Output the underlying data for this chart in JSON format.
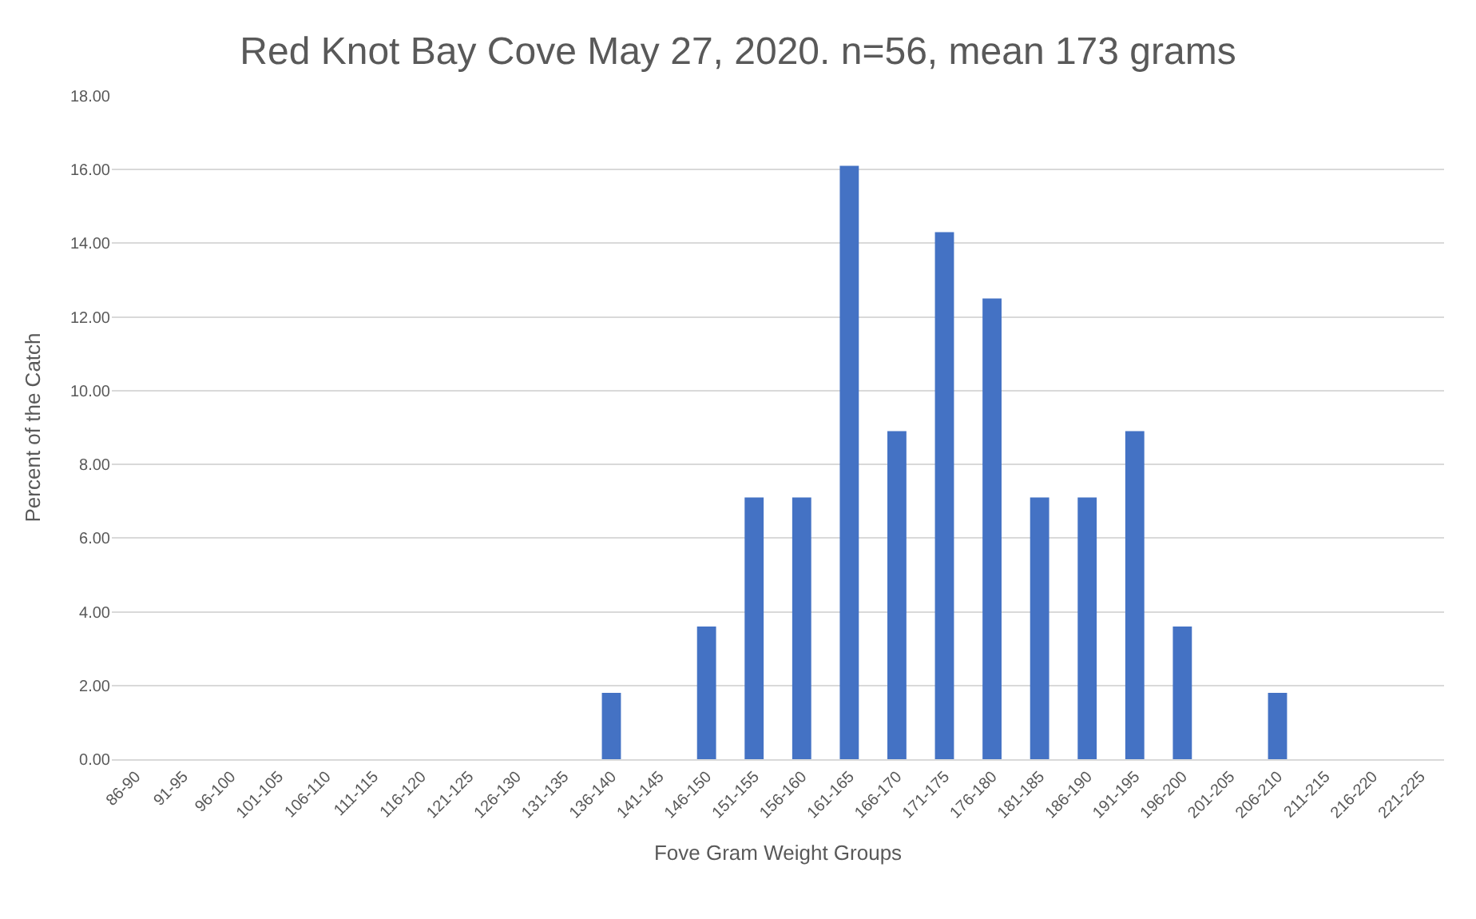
{
  "chart_data": {
    "type": "bar",
    "title": "Red Knot Bay Cove May 27, 2020. n=56, mean 173 grams",
    "xlabel": "Fove Gram Weight Groups",
    "ylabel": "Percent of the Catch",
    "categories": [
      "86-90",
      "91-95",
      "96-100",
      "101-105",
      "106-110",
      "111-115",
      "116-120",
      "121-125",
      "126-130",
      "131-135",
      "136-140",
      "141-145",
      "146-150",
      "151-155",
      "156-160",
      "161-165",
      "166-170",
      "171-175",
      "176-180",
      "181-185",
      "186-190",
      "191-195",
      "196-200",
      "201-205",
      "206-210",
      "211-215",
      "216-220",
      "221-225"
    ],
    "values": [
      0,
      0,
      0,
      0,
      0,
      0,
      0,
      0,
      0,
      0,
      1.8,
      0,
      3.6,
      7.1,
      7.1,
      16.1,
      8.9,
      14.3,
      12.5,
      7.1,
      7.1,
      8.9,
      3.6,
      0,
      1.8,
      0,
      0,
      0
    ],
    "color": "#4472c4",
    "ylim": [
      0,
      18
    ],
    "yticks": [
      {
        "value": 0,
        "label": "0.00"
      },
      {
        "value": 2,
        "label": "2.00"
      },
      {
        "value": 4,
        "label": "4.00"
      },
      {
        "value": 6,
        "label": "6.00"
      },
      {
        "value": 8,
        "label": "8.00"
      },
      {
        "value": 10,
        "label": "10.00"
      },
      {
        "value": 12,
        "label": "12.00"
      },
      {
        "value": 14,
        "label": "14.00"
      },
      {
        "value": 16,
        "label": "16.00"
      },
      {
        "value": 18,
        "label": "18.00"
      }
    ],
    "grid": "y"
  }
}
